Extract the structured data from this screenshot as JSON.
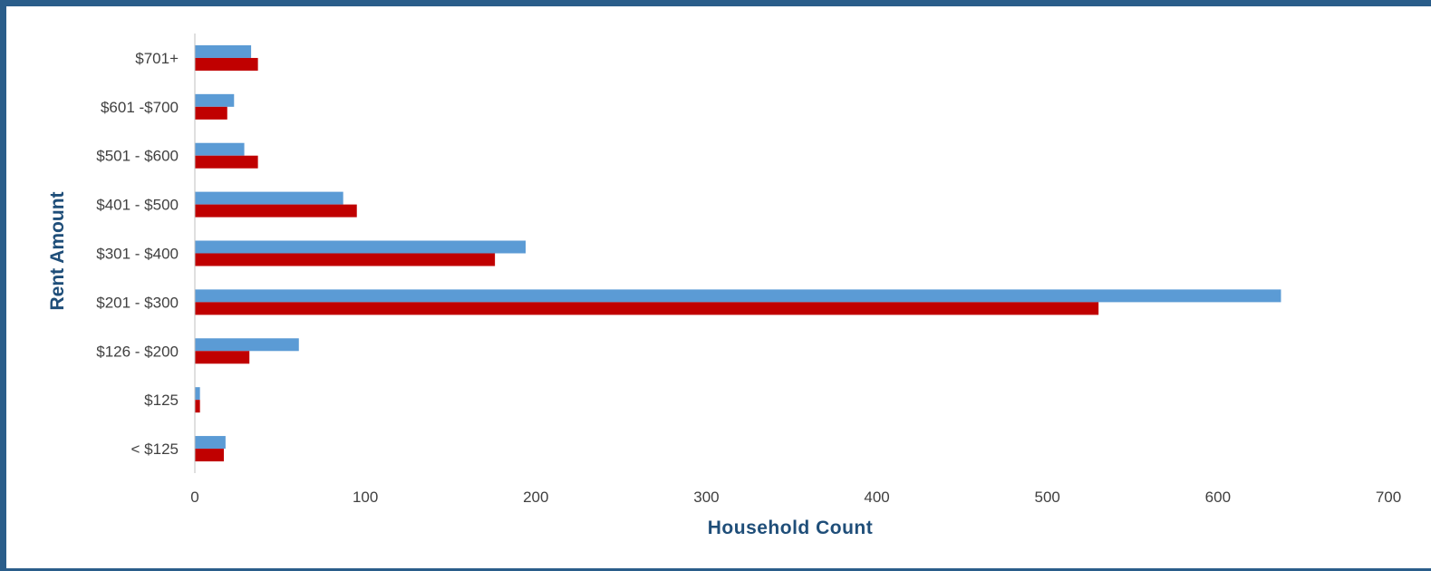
{
  "chart_data": {
    "type": "bar",
    "orientation": "horizontal",
    "title": "",
    "xlabel": "Household Count",
    "ylabel": "Rent Amount",
    "categories": [
      "< $125",
      "$125",
      "$126 - $200",
      "$201 - $300",
      "$301 - $400",
      "$401 - $500",
      "$501 - $600",
      "$601 -$700",
      "$701+"
    ],
    "series": [
      {
        "color": "#5b9bd5",
        "values": [
          18,
          3,
          61,
          637,
          194,
          87,
          29,
          23,
          33
        ]
      },
      {
        "color": "#c00000",
        "values": [
          17,
          3,
          32,
          530,
          176,
          95,
          37,
          19,
          37
        ]
      }
    ],
    "xlim": [
      0,
      700
    ],
    "xticks": [
      "0",
      "100",
      "200",
      "300",
      "400",
      "500",
      "600",
      "700"
    ],
    "grid": false,
    "legend": "none"
  }
}
